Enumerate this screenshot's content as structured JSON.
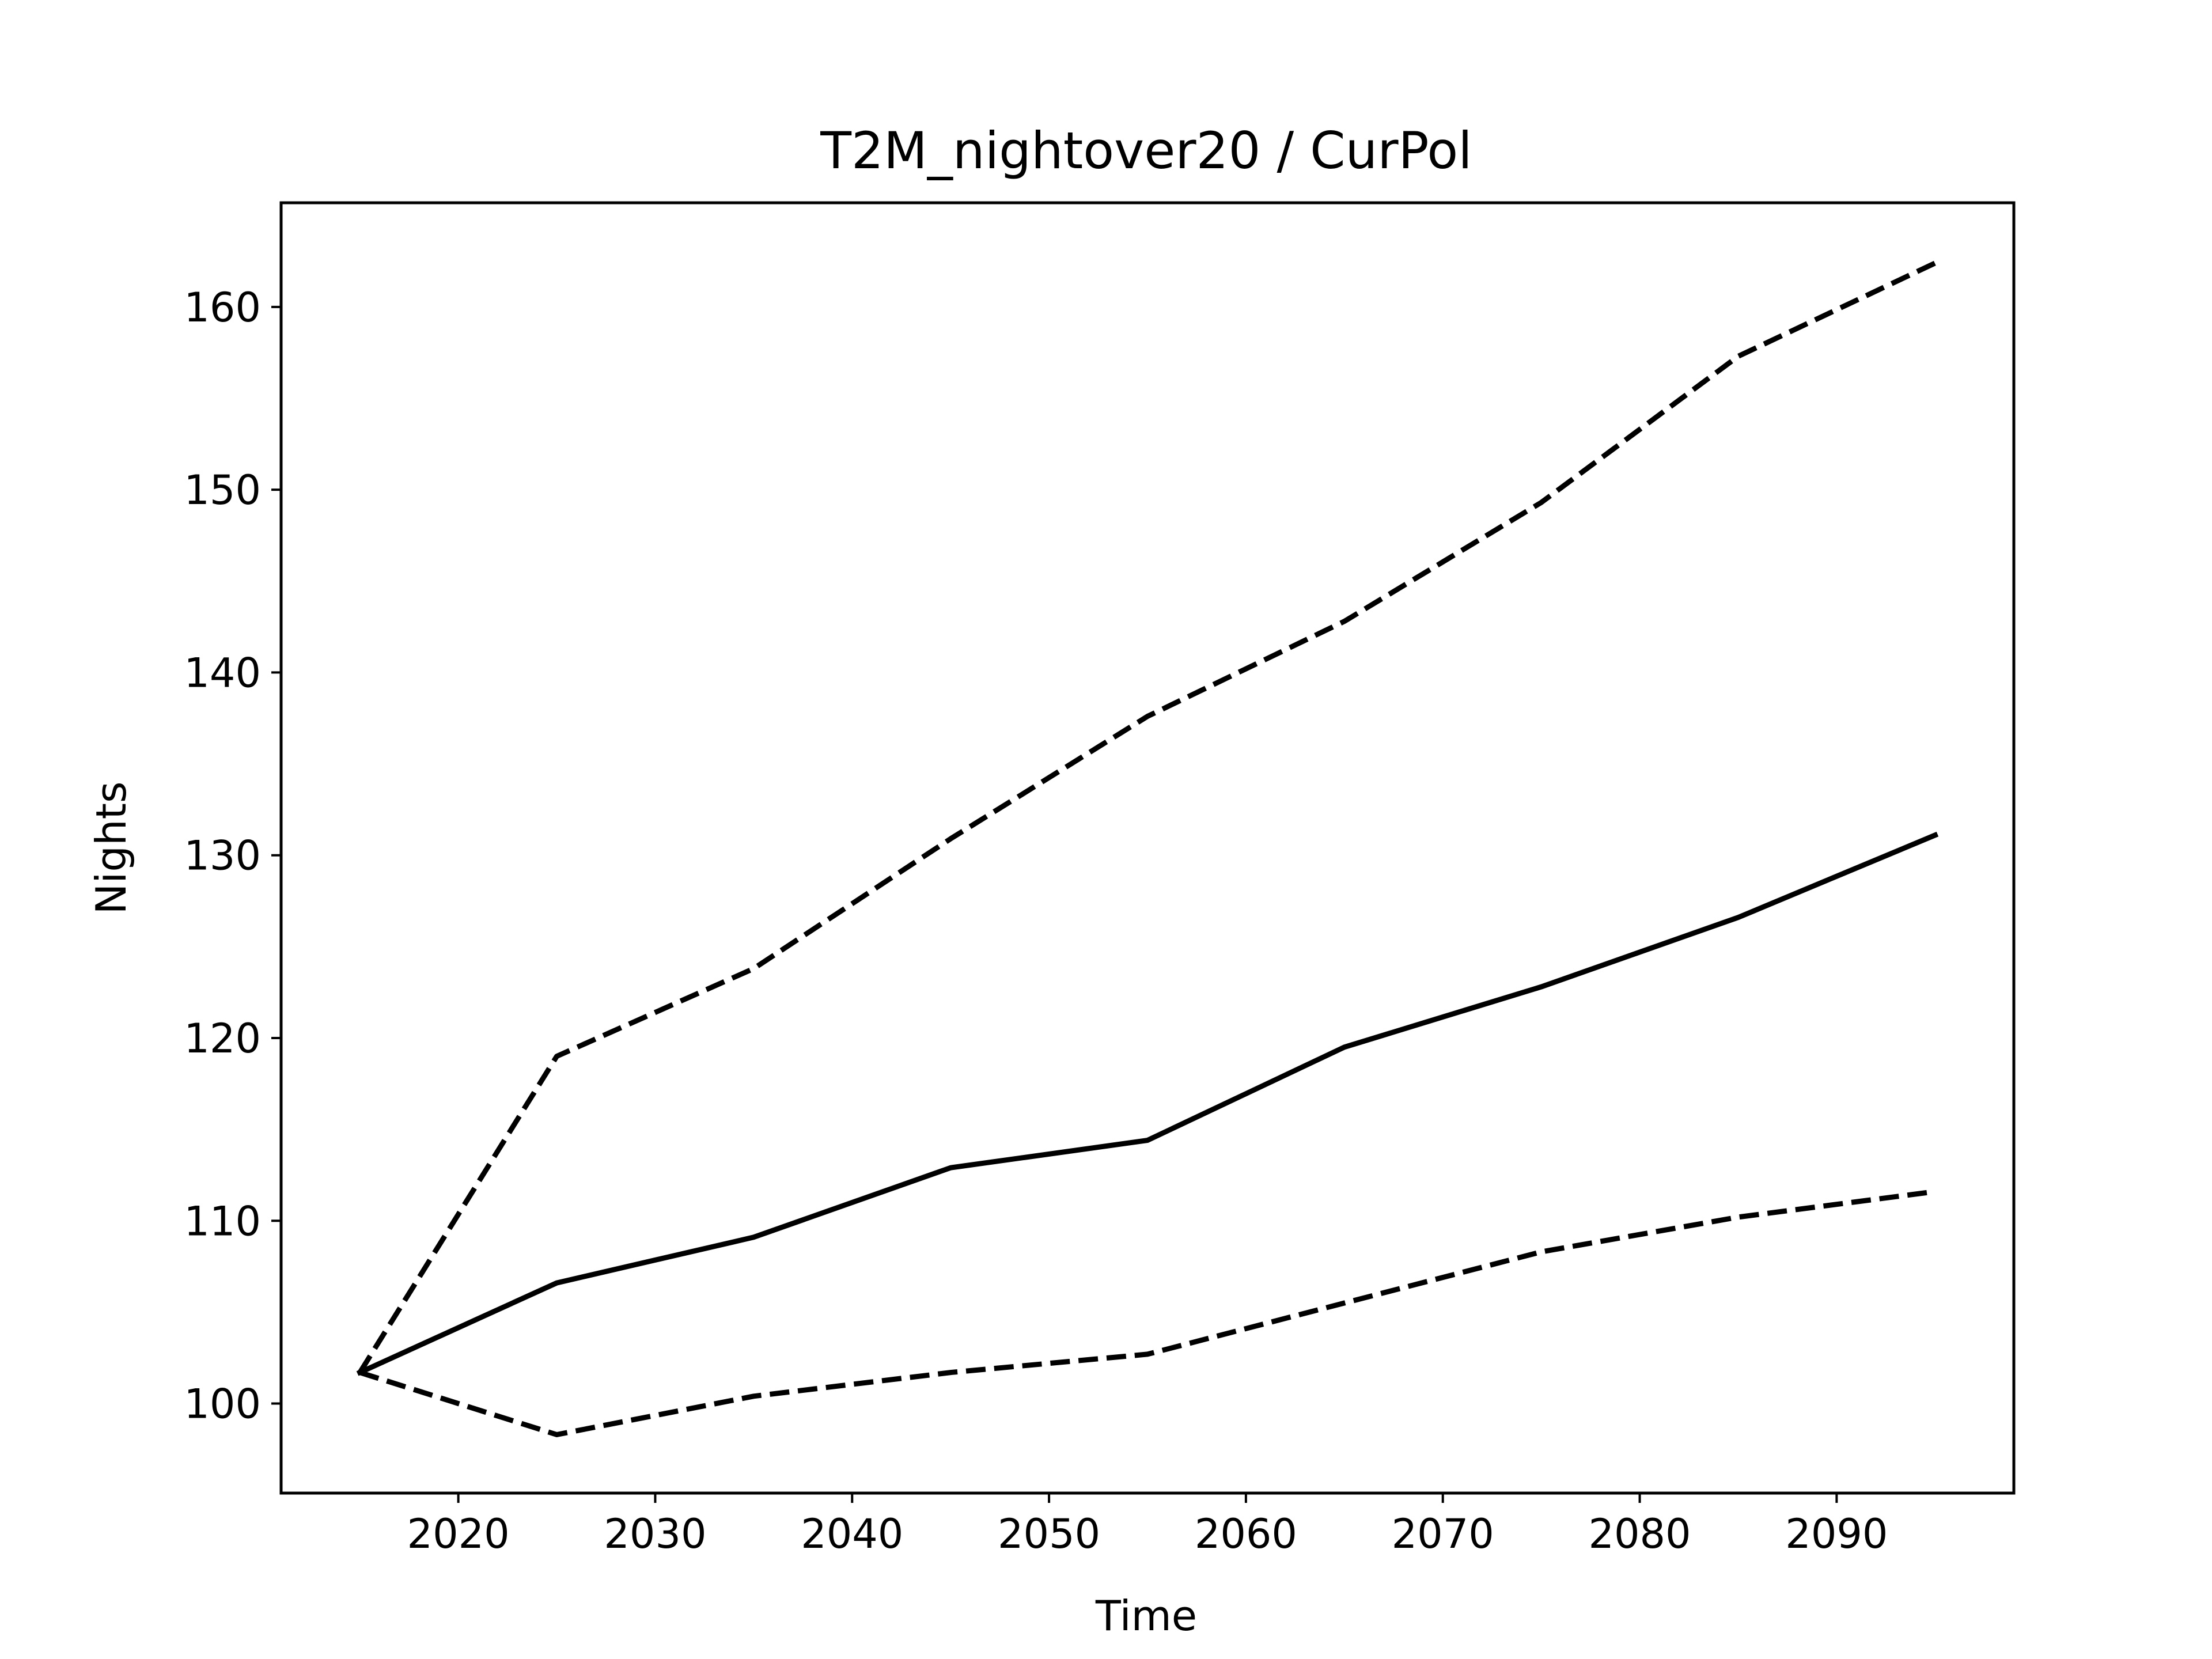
{
  "chart_data": {
    "type": "line",
    "title": "T2M_nightover20 / CurPol",
    "xlabel": "Time",
    "ylabel": "Nights",
    "xlim": [
      2011,
      2099
    ],
    "ylim": [
      95.1,
      165.7
    ],
    "xticks": [
      2020,
      2030,
      2040,
      2050,
      2060,
      2070,
      2080,
      2090
    ],
    "yticks": [
      100,
      110,
      120,
      130,
      140,
      150,
      160
    ],
    "grid": false,
    "line_color": "#000000",
    "x": [
      2015,
      2025,
      2035,
      2045,
      2055,
      2065,
      2075,
      2085,
      2095
    ],
    "series": [
      {
        "style": "dashed",
        "values": [
          101.7,
          119.0,
          123.8,
          130.9,
          137.6,
          142.8,
          149.3,
          157.3,
          162.4
        ]
      },
      {
        "style": "solid",
        "values": [
          101.7,
          106.6,
          109.1,
          112.9,
          114.4,
          119.5,
          122.8,
          126.6,
          131.1
        ]
      },
      {
        "style": "dashed",
        "values": [
          101.7,
          98.3,
          100.4,
          101.7,
          102.7,
          105.5,
          108.3,
          110.2,
          111.6
        ]
      }
    ]
  }
}
